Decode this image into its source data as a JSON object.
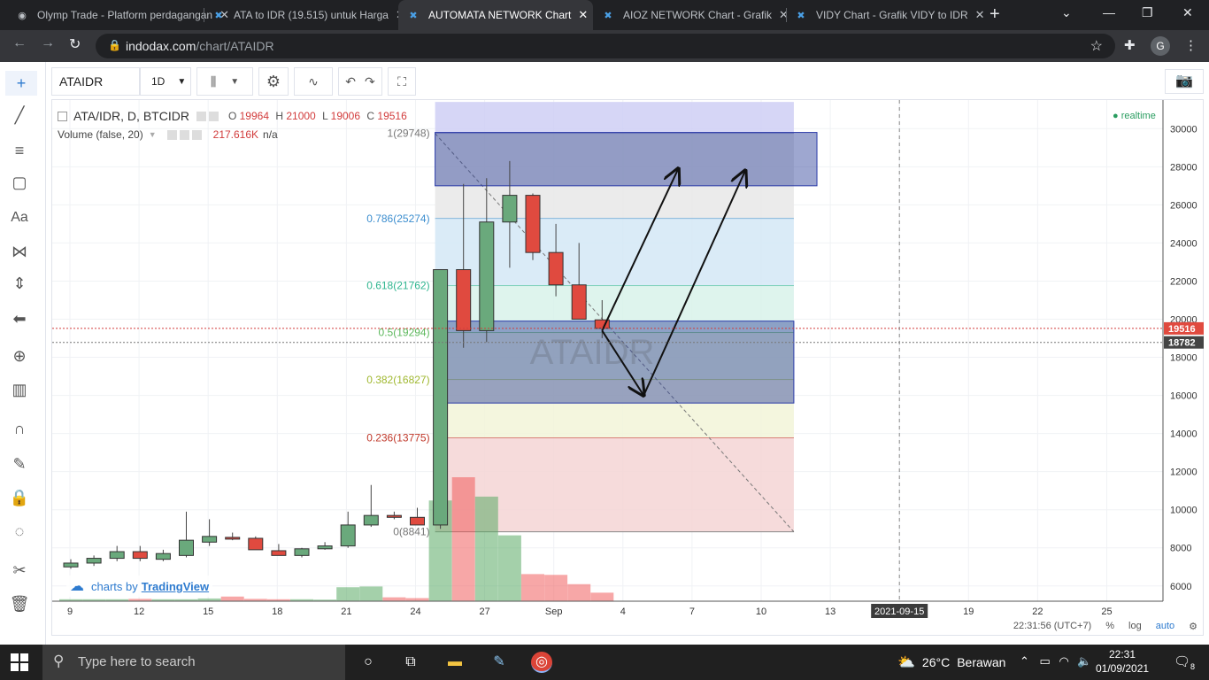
{
  "browser": {
    "tabs": [
      {
        "title": "Olymp Trade - Platform perdagangan",
        "icon": "olymp-icon",
        "active": false
      },
      {
        "title": "ATA to IDR (19.515) untuk Harga",
        "icon": "indodax-icon",
        "active": false
      },
      {
        "title": "AUTOMATA NETWORK Chart",
        "icon": "indodax-icon",
        "active": true
      },
      {
        "title": "AIOZ NETWORK Chart - Grafik",
        "icon": "indodax-icon",
        "active": false
      },
      {
        "title": "VIDY Chart - Grafik VIDY to IDR",
        "icon": "indodax-icon",
        "active": false
      }
    ],
    "url_host": "indodax.com",
    "url_path": "/chart/ATAIDR",
    "profile_initial": "G"
  },
  "toolbar": {
    "symbol": "ATAIDR",
    "interval": "1D"
  },
  "legend": {
    "symbol_title": "ATA/IDR, D, BTCIDR",
    "ohlc": {
      "o_label": "O",
      "o": "19964",
      "h_label": "H",
      "h": "21000",
      "l_label": "L",
      "l": "19006",
      "c_label": "C",
      "c": "19516"
    },
    "volume_label": "Volume (false, 20)",
    "volume_value": "217.616K",
    "volume_na": "n/a",
    "realtime": "realtime"
  },
  "watermark": "ATAIDR",
  "branding": {
    "prefix": "charts by",
    "name": "TradingView"
  },
  "bottom_bar": {
    "time": "22:31:56 (UTC+7)",
    "percent": "%",
    "log": "log",
    "auto": "auto"
  },
  "chart_data": {
    "type": "candlestick",
    "price_axis": {
      "ticks": [
        6000,
        8000,
        10000,
        12000,
        14000,
        16000,
        18000,
        20000,
        22000,
        24000,
        26000,
        28000,
        30000
      ],
      "range": [
        5200,
        31500
      ]
    },
    "time_axis": {
      "labels": [
        "9",
        "12",
        "15",
        "18",
        "21",
        "24",
        "27",
        "Sep",
        "4",
        "7",
        "10",
        "13",
        "2021-09-15",
        "19",
        "22",
        "25"
      ],
      "highlighted": "2021-09-15"
    },
    "last_price": {
      "value": 19516,
      "label": "19516",
      "color": "#e04a3f"
    },
    "reference_price": {
      "value": 18782,
      "label": "18782"
    },
    "candles": [
      {
        "o": 7000,
        "h": 7400,
        "l": 6900,
        "c": 7200
      },
      {
        "o": 7200,
        "h": 7600,
        "l": 7050,
        "c": 7450
      },
      {
        "o": 7450,
        "h": 8100,
        "l": 7300,
        "c": 7800
      },
      {
        "o": 7800,
        "h": 8100,
        "l": 7300,
        "c": 7450
      },
      {
        "o": 7400,
        "h": 7900,
        "l": 7300,
        "c": 7700
      },
      {
        "o": 7600,
        "h": 9900,
        "l": 7500,
        "c": 8400
      },
      {
        "o": 8300,
        "h": 9500,
        "l": 8100,
        "c": 8600
      },
      {
        "o": 8550,
        "h": 8800,
        "l": 8400,
        "c": 8500
      },
      {
        "o": 8500,
        "h": 8600,
        "l": 7900,
        "c": 7900
      },
      {
        "o": 7850,
        "h": 8200,
        "l": 7700,
        "c": 7600
      },
      {
        "o": 7600,
        "h": 8000,
        "l": 7500,
        "c": 7950
      },
      {
        "o": 7950,
        "h": 8300,
        "l": 7900,
        "c": 8100
      },
      {
        "o": 8100,
        "h": 9900,
        "l": 8000,
        "c": 9200
      },
      {
        "o": 9200,
        "h": 11300,
        "l": 9100,
        "c": 9700
      },
      {
        "o": 9700,
        "h": 9900,
        "l": 9500,
        "c": 9600
      },
      {
        "o": 9600,
        "h": 10100,
        "l": 9200,
        "c": 9200
      },
      {
        "o": 9200,
        "h": 22600,
        "l": 9000,
        "c": 22600
      },
      {
        "o": 22600,
        "h": 27100,
        "l": 18500,
        "c": 19400
      },
      {
        "o": 19400,
        "h": 27400,
        "l": 18800,
        "c": 25100
      },
      {
        "o": 25100,
        "h": 28300,
        "l": 22700,
        "c": 26500
      },
      {
        "o": 26500,
        "h": 26600,
        "l": 23100,
        "c": 23500
      },
      {
        "o": 23500,
        "h": 25000,
        "l": 21200,
        "c": 21800
      },
      {
        "o": 21800,
        "h": 24000,
        "l": 20000,
        "c": 20000
      },
      {
        "o": 19964,
        "h": 21000,
        "l": 19006,
        "c": 19516
      }
    ],
    "volume": [
      {
        "v": 0.25,
        "up": true
      },
      {
        "v": 0.25,
        "up": true
      },
      {
        "v": 0.25,
        "up": true
      },
      {
        "v": 0.3,
        "up": false
      },
      {
        "v": 0.25,
        "up": true
      },
      {
        "v": 0.25,
        "up": true
      },
      {
        "v": 0.35,
        "up": true
      },
      {
        "v": 0.6,
        "up": false
      },
      {
        "v": 0.3,
        "up": false
      },
      {
        "v": 0.25,
        "up": false
      },
      {
        "v": 0.25,
        "up": true
      },
      {
        "v": 0.2,
        "up": true
      },
      {
        "v": 1.8,
        "up": true
      },
      {
        "v": 1.9,
        "up": true
      },
      {
        "v": 0.5,
        "up": false
      },
      {
        "v": 0.4,
        "up": false
      },
      {
        "v": 13,
        "up": true
      },
      {
        "v": 16,
        "up": false
      },
      {
        "v": 13.5,
        "up": true
      },
      {
        "v": 8.5,
        "up": true
      },
      {
        "v": 3.5,
        "up": false
      },
      {
        "v": 3.4,
        "up": false
      },
      {
        "v": 2.2,
        "up": false
      },
      {
        "v": 1.1,
        "up": false
      }
    ],
    "fibonacci": {
      "levels": [
        {
          "ratio": "1",
          "price": 29748,
          "label": "1(29748)",
          "fill": "#cfcff5",
          "line": "#8080c0",
          "text": "#777"
        },
        {
          "ratio": "0.786",
          "price": 25274,
          "label": "0.786(25274)",
          "fill": "#e8e8e8",
          "line": "#3c8ecf",
          "text": "#3c8ecf"
        },
        {
          "ratio": "0.618",
          "price": 21762,
          "label": "0.618(21762)",
          "fill": "#d4e8f6",
          "line": "#2fb58f",
          "text": "#2fb58f"
        },
        {
          "ratio": "0.5",
          "price": 19294,
          "label": "0.5(19294)",
          "fill": "#d8f2ea",
          "line": "#5cb85c",
          "text": "#5cb85c"
        },
        {
          "ratio": "0.382",
          "price": 16827,
          "label": "0.382(16827)",
          "fill": "#e6f4d9",
          "line": "#a8c43c",
          "text": "#a0b830"
        },
        {
          "ratio": "0.236",
          "price": 13775,
          "label": "0.236(13775)",
          "fill": "#f2f5d8",
          "line": "#c0392b",
          "text": "#c0392b"
        },
        {
          "ratio": "0",
          "price": 8841,
          "label": "0(8841)",
          "fill": "#f5d5d5",
          "line": "#888",
          "text": "#777"
        }
      ],
      "top_band_price": 31400,
      "start_candle": 16,
      "end_day": 31.3
    },
    "zones": [
      {
        "name": "target-zone",
        "price_top": 29800,
        "price_bottom": 27000,
        "day_start": 16,
        "day_end": 32.3
      },
      {
        "name": "support-zone",
        "price_top": 19900,
        "price_bottom": 15600,
        "day_start": 16,
        "day_end": 31.3
      }
    ],
    "arrows": [
      {
        "name": "arrow-up-1",
        "from": [
          23.0,
          19400
        ],
        "to": [
          26.3,
          27900
        ]
      },
      {
        "name": "arrow-down",
        "from": [
          23.0,
          19400
        ],
        "to": [
          24.8,
          16000
        ]
      },
      {
        "name": "arrow-up-2",
        "from": [
          24.8,
          16000
        ],
        "to": [
          29.2,
          27800
        ]
      }
    ]
  },
  "taskbar": {
    "search_placeholder": "Type here to search",
    "weather_temp": "26°C",
    "weather_text": "Berawan",
    "time": "22:31",
    "date": "01/09/2021",
    "notification_count": "8"
  }
}
